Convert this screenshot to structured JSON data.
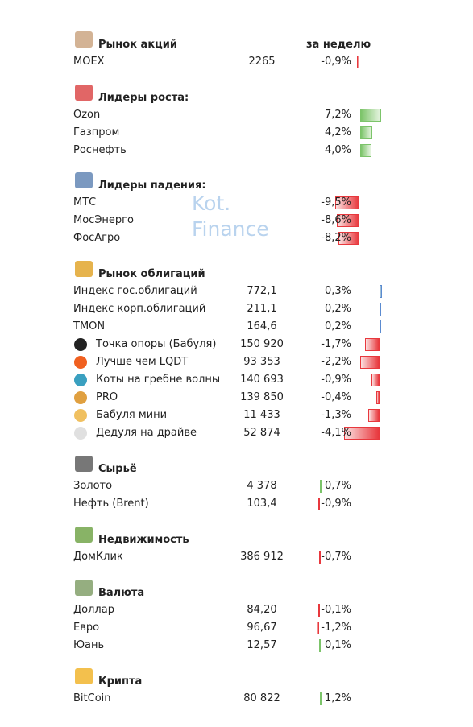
{
  "watermark": [
    "Kot.",
    "Finance"
  ],
  "sections": [
    {
      "title": "Рынок акций",
      "column_header": "за неделю",
      "rows": [
        {
          "name": "MOEX",
          "value": "2265",
          "change": {
            "value": -0.9,
            "label": "-0,9%"
          }
        }
      ]
    },
    {
      "title": "Лидеры роста:",
      "rows": [
        {
          "name": "Ozon",
          "change": {
            "value": 7.2,
            "label": "7,2%"
          }
        },
        {
          "name": "Газпром",
          "change": {
            "value": 4.2,
            "label": "4,2%"
          }
        },
        {
          "name": "Роснефть",
          "change": {
            "value": 4.0,
            "label": "4,0%"
          }
        }
      ]
    },
    {
      "title": "Лидеры падения:",
      "rows": [
        {
          "name": "МТС",
          "change": {
            "value": -9.5,
            "label": "-9,5%"
          }
        },
        {
          "name": "МосЭнерго",
          "change": {
            "value": -8.6,
            "label": "-8,6%"
          }
        },
        {
          "name": "ФосАгро",
          "change": {
            "value": -8.2,
            "label": "-8,2%"
          }
        }
      ]
    },
    {
      "title": "Рынок облигаций",
      "rows": [
        {
          "name": "Индекс гос.облигаций",
          "value": "772,1",
          "change": {
            "value": 0.3,
            "label": "0,3%"
          }
        },
        {
          "name": "Индекс корп.облигаций",
          "value": "211,1",
          "change": {
            "value": 0.2,
            "label": "0,2%"
          }
        },
        {
          "name": "TMON",
          "value": "164,6",
          "change": {
            "value": 0.2,
            "label": "0,2%"
          }
        },
        {
          "name": "Точка опоры (Бабуля)",
          "value": "150 920",
          "change": {
            "value": -1.7,
            "label": "-1,7%"
          }
        },
        {
          "name": "Лучше чем LQDT",
          "value": "93 353",
          "change": {
            "value": -2.2,
            "label": "-2,2%"
          }
        },
        {
          "name": "Коты на гребне волны",
          "value": "140 693",
          "change": {
            "value": -0.9,
            "label": "-0,9%"
          }
        },
        {
          "name": "PRO",
          "value": "139 850",
          "change": {
            "value": -0.4,
            "label": "-0,4%"
          }
        },
        {
          "name": "Бабуля мини",
          "value": "11 433",
          "change": {
            "value": -1.3,
            "label": "-1,3%"
          }
        },
        {
          "name": "Дедуля на драйве",
          "value": "52 874",
          "change": {
            "value": -4.1,
            "label": "-4,1%"
          }
        }
      ]
    },
    {
      "title": "Сырьё",
      "rows": [
        {
          "name": "Золото",
          "value": "4 378",
          "change": {
            "value": 0.7,
            "label": "0,7%"
          }
        },
        {
          "name": "Нефть (Brent)",
          "value": "103,4",
          "change": {
            "value": -0.9,
            "label": "-0,9%"
          }
        }
      ]
    },
    {
      "title": "Недвижимость",
      "rows": [
        {
          "name": "ДомКлик",
          "value": "386 912",
          "change": {
            "value": -0.7,
            "label": "-0,7%"
          }
        }
      ]
    },
    {
      "title": "Валюта",
      "rows": [
        {
          "name": "Доллар",
          "value": "84,20",
          "change": {
            "value": -0.1,
            "label": "-0,1%"
          }
        },
        {
          "name": "Евро",
          "value": "96,67",
          "change": {
            "value": -1.2,
            "label": "-1,2%"
          }
        },
        {
          "name": "Юань",
          "value": "12,57",
          "change": {
            "value": 0.1,
            "label": "0,1%"
          }
        }
      ]
    },
    {
      "title": "Крипта",
      "rows": [
        {
          "name": "BitCoin",
          "value": "80 822",
          "change": {
            "value": 1.2,
            "label": "1,2%"
          }
        }
      ]
    }
  ]
}
